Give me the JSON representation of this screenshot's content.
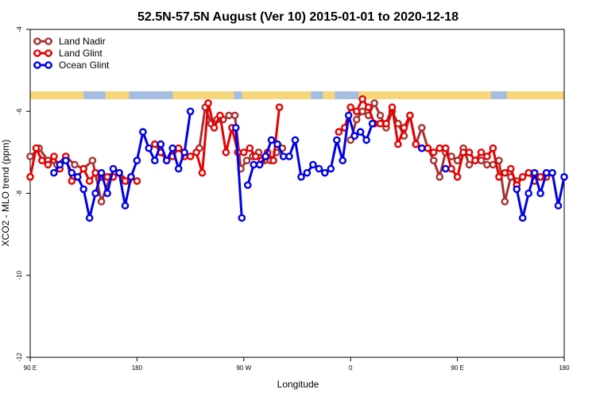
{
  "chart_data": {
    "type": "line",
    "title": "52.5N-57.5N August (Ver 10)   2015-01-01 to 2020-12-18",
    "xlabel": "Longitude",
    "ylabel": "XCO2 - MLO trend (ppm)",
    "xlim": [
      -90,
      180
    ],
    "ylim": [
      -12,
      -4
    ],
    "x_ticks": [
      {
        "value": -90,
        "label": "90 E"
      },
      {
        "value": -36,
        "label": "180"
      },
      {
        "value": 18,
        "label": "90 W"
      },
      {
        "value": 72,
        "label": "0"
      },
      {
        "value": 126,
        "label": "90 E"
      },
      {
        "value": 180,
        "label": "180"
      }
    ],
    "y_ticks": [
      {
        "value": -4,
        "label": "-4"
      },
      {
        "value": -6,
        "label": "-6"
      },
      {
        "value": -8,
        "label": "-8"
      },
      {
        "value": -10,
        "label": "-10"
      },
      {
        "value": -12,
        "label": "-12"
      }
    ],
    "legend_position": "top-left",
    "land_strip_colors": {
      "land": "#f7d57a",
      "ocean": "#a4bde0"
    },
    "series": [
      {
        "name": "Land Nadir",
        "color": "#a83232",
        "segments": [
          [
            [
              -90,
              -7.1
            ],
            [
              -85.5,
              -6.9
            ],
            [
              -81,
              -7.2
            ],
            [
              -76.5,
              -7.3
            ],
            [
              -72,
              -7.1
            ],
            [
              -67.5,
              -7.3
            ],
            [
              -63,
              -7.4
            ],
            [
              -58.5,
              -7.2
            ],
            [
              -54,
              -8.2
            ],
            [
              -49.5,
              -7.6
            ],
            [
              -45,
              -7.5
            ],
            [
              -40.5,
              -7.7
            ]
          ],
          [
            [
              -4.5,
              -6.9
            ],
            [
              -1.5,
              -5.9
            ],
            [
              1.5,
              -6.3
            ],
            [
              4.5,
              -6.2
            ],
            [
              7.5,
              -6.2
            ],
            [
              10.5,
              -6.1
            ],
            [
              13.5,
              -6.1
            ],
            [
              16.5,
              -7.4
            ],
            [
              19.5,
              -7.2
            ],
            [
              22.5,
              -7.1
            ],
            [
              25.5,
              -7.0
            ],
            [
              28.5,
              -7.2
            ],
            [
              31.5,
              -7.2
            ],
            [
              34.5,
              -7.0
            ],
            [
              37.5,
              -6.9
            ]
          ],
          [
            [
              72,
              -6.7
            ],
            [
              75,
              -6.2
            ],
            [
              78,
              -6.0
            ],
            [
              81,
              -6.1
            ],
            [
              84,
              -5.8
            ],
            [
              87,
              -6.1
            ],
            [
              90,
              -6.4
            ],
            [
              93,
              -6.0
            ],
            [
              96,
              -6.3
            ],
            [
              99,
              -6.6
            ],
            [
              102,
              -6.1
            ],
            [
              105,
              -6.8
            ],
            [
              108,
              -6.4
            ],
            [
              111,
              -6.9
            ],
            [
              114,
              -7.2
            ],
            [
              117,
              -7.6
            ],
            [
              120,
              -7.0
            ],
            [
              123,
              -7.1
            ],
            [
              126,
              -7.2
            ],
            [
              129,
              -6.9
            ],
            [
              132,
              -7.3
            ],
            [
              135,
              -7.2
            ],
            [
              138,
              -7.2
            ],
            [
              141,
              -7.3
            ],
            [
              144,
              -7.3
            ],
            [
              147,
              -7.2
            ],
            [
              150,
              -8.2
            ],
            [
              153,
              -7.6
            ],
            [
              156,
              -7.7
            ]
          ]
        ]
      },
      {
        "name": "Land Glint",
        "color": "#e60000",
        "segments": [
          [
            [
              -90,
              -7.6
            ],
            [
              -87,
              -6.9
            ],
            [
              -84,
              -7.2
            ],
            [
              -81,
              -7.3
            ],
            [
              -78,
              -7.1
            ],
            [
              -75,
              -7.4
            ],
            [
              -72,
              -7.1
            ],
            [
              -69,
              -7.7
            ],
            [
              -66,
              -7.6
            ],
            [
              -63,
              -7.4
            ],
            [
              -60,
              -7.7
            ],
            [
              -57,
              -7.5
            ],
            [
              -54,
              -7.6
            ],
            [
              -51,
              -7.6
            ],
            [
              -48,
              -7.6
            ],
            [
              -45,
              -7.5
            ],
            [
              -42,
              -7.7
            ],
            [
              -39,
              -7.6
            ],
            [
              -36,
              -7.7
            ]
          ],
          [
            [
              -27,
              -6.8
            ],
            [
              -24,
              -7.0
            ],
            [
              -21,
              -7.2
            ],
            [
              -18,
              -7.1
            ],
            [
              -15,
              -6.9
            ],
            [
              -12,
              -7.1
            ],
            [
              -9,
              -7.1
            ],
            [
              -6,
              -7.0
            ],
            [
              -3,
              -7.5
            ],
            [
              0,
              -5.8
            ],
            [
              3,
              -6.4
            ],
            [
              6,
              -6.1
            ],
            [
              9,
              -7.0
            ],
            [
              12,
              -6.4
            ],
            [
              15,
              -7.0
            ],
            [
              18,
              -7.0
            ],
            [
              21,
              -6.9
            ],
            [
              24,
              -7.1
            ],
            [
              27,
              -7.2
            ],
            [
              30,
              -7.0
            ],
            [
              33,
              -7.2
            ],
            [
              36,
              -5.9
            ]
          ],
          [
            [
              66,
              -6.5
            ],
            [
              69,
              -6.4
            ],
            [
              72,
              -5.9
            ],
            [
              75,
              -6.0
            ],
            [
              78,
              -5.7
            ],
            [
              81,
              -5.9
            ],
            [
              84,
              -6.3
            ],
            [
              87,
              -6.3
            ],
            [
              90,
              -6.3
            ],
            [
              93,
              -5.9
            ],
            [
              96,
              -6.8
            ],
            [
              99,
              -6.4
            ],
            [
              102,
              -6.1
            ],
            [
              105,
              -6.8
            ],
            [
              108,
              -6.9
            ],
            [
              111,
              -6.9
            ],
            [
              114,
              -7.0
            ],
            [
              117,
              -6.9
            ],
            [
              120,
              -6.9
            ],
            [
              123,
              -7.4
            ],
            [
              126,
              -7.6
            ],
            [
              129,
              -7.0
            ],
            [
              132,
              -7.0
            ],
            [
              135,
              -7.2
            ],
            [
              138,
              -7.0
            ],
            [
              141,
              -7.1
            ],
            [
              144,
              -6.9
            ],
            [
              147,
              -7.6
            ],
            [
              150,
              -7.5
            ],
            [
              153,
              -7.4
            ],
            [
              156,
              -7.8
            ],
            [
              159,
              -7.6
            ],
            [
              162,
              -7.5
            ],
            [
              165,
              -7.7
            ],
            [
              168,
              -7.6
            ],
            [
              171,
              -7.6
            ]
          ]
        ]
      },
      {
        "name": "Ocean Glint",
        "color": "#0000e6",
        "segments": [
          [
            [
              -78,
              -7.5
            ],
            [
              -75,
              -7.3
            ],
            [
              -72,
              -7.2
            ],
            [
              -69,
              -7.5
            ],
            [
              -66,
              -7.6
            ],
            [
              -63,
              -7.9
            ],
            [
              -60,
              -8.6
            ],
            [
              -57,
              -8.0
            ],
            [
              -54,
              -7.5
            ],
            [
              -51,
              -8.0
            ],
            [
              -48,
              -7.4
            ],
            [
              -45,
              -7.5
            ],
            [
              -42,
              -8.3
            ],
            [
              -39,
              -7.6
            ],
            [
              -36,
              -7.2
            ],
            [
              -33,
              -6.5
            ],
            [
              -30,
              -6.9
            ],
            [
              -27,
              -7.2
            ],
            [
              -24,
              -6.8
            ],
            [
              -21,
              -7.2
            ],
            [
              -18,
              -6.9
            ],
            [
              -15,
              -7.4
            ],
            [
              -12,
              -7.0
            ],
            [
              -9,
              -6.0
            ]
          ],
          [
            [
              14,
              -6.4
            ],
            [
              17,
              -8.6
            ]
          ],
          [
            [
              20,
              -7.8
            ],
            [
              23,
              -7.3
            ],
            [
              26,
              -7.3
            ],
            [
              29,
              -7.1
            ],
            [
              32,
              -6.7
            ],
            [
              35,
              -6.8
            ],
            [
              38,
              -7.1
            ],
            [
              41,
              -7.1
            ],
            [
              44,
              -6.7
            ],
            [
              47,
              -7.6
            ],
            [
              50,
              -7.5
            ],
            [
              53,
              -7.3
            ],
            [
              56,
              -7.4
            ],
            [
              59,
              -7.5
            ],
            [
              62,
              -7.4
            ],
            [
              65,
              -6.7
            ],
            [
              68,
              -7.2
            ],
            [
              71,
              -6.1
            ],
            [
              74,
              -6.6
            ],
            [
              77,
              -6.5
            ],
            [
              80,
              -6.7
            ],
            [
              83,
              -6.3
            ]
          ],
          [
            [
              108,
              -6.9
            ]
          ],
          [
            [
              120,
              -7.4
            ]
          ],
          [
            [
              156,
              -7.9
            ],
            [
              159,
              -8.6
            ],
            [
              162,
              -8.0
            ],
            [
              165,
              -7.5
            ],
            [
              168,
              -8.0
            ],
            [
              171,
              -7.5
            ],
            [
              174,
              -7.5
            ],
            [
              177,
              -8.3
            ],
            [
              180,
              -7.6
            ]
          ]
        ]
      }
    ]
  }
}
